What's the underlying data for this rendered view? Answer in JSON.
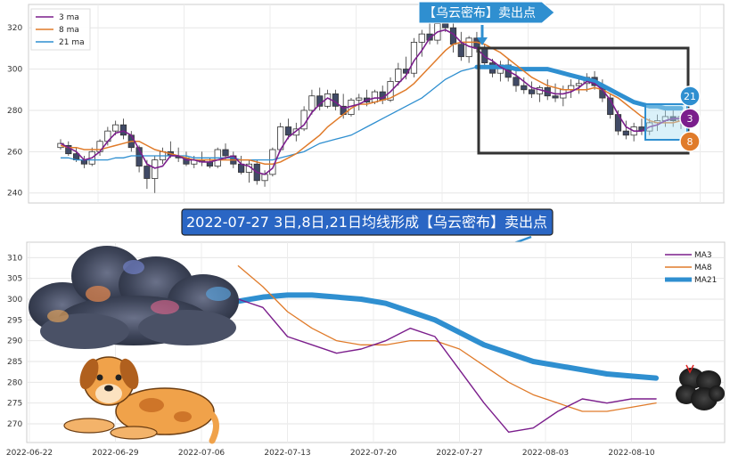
{
  "top_badge": "【乌云密布】卖出点",
  "caption": "2022-07-27 3日,8日,21日均线形成【乌云密布】卖出点",
  "colors": {
    "ma3": "#7b1e8c",
    "ma8": "#e07b2a",
    "ma21": "#2f8fd0",
    "up": "#ffffff",
    "down": "#404a66"
  },
  "chart_data": [
    {
      "type": "candlestick",
      "ylim": [
        236,
        330
      ],
      "yticks": [
        240,
        260,
        280,
        300,
        320
      ],
      "legend": {
        "position": "top-left",
        "items": [
          "3 ma",
          "8 ma",
          "21 ma"
        ]
      },
      "grid": true,
      "ohlc": [
        [
          262,
          266,
          261,
          264
        ],
        [
          263,
          265,
          258,
          259
        ],
        [
          259,
          262,
          255,
          256
        ],
        [
          256,
          258,
          252,
          254
        ],
        [
          254,
          262,
          253,
          260
        ],
        [
          260,
          266,
          258,
          265
        ],
        [
          265,
          272,
          263,
          270
        ],
        [
          270,
          275,
          268,
          273
        ],
        [
          273,
          276,
          266,
          268
        ],
        [
          268,
          270,
          260,
          262
        ],
        [
          262,
          263,
          250,
          253
        ],
        [
          253,
          256,
          242,
          247
        ],
        [
          247,
          258,
          240,
          256
        ],
        [
          256,
          262,
          254,
          260
        ],
        [
          260,
          265,
          257,
          258
        ],
        [
          258,
          262,
          255,
          257
        ],
        [
          257,
          260,
          253,
          254
        ],
        [
          254,
          258,
          252,
          256
        ],
        [
          256,
          260,
          253,
          255
        ],
        [
          255,
          257,
          252,
          253
        ],
        [
          253,
          262,
          252,
          261
        ],
        [
          261,
          264,
          256,
          258
        ],
        [
          258,
          260,
          252,
          254
        ],
        [
          254,
          258,
          249,
          250
        ],
        [
          250,
          256,
          245,
          254
        ],
        [
          254,
          256,
          244,
          246
        ],
        [
          246,
          251,
          243,
          249
        ],
        [
          249,
          262,
          248,
          261
        ],
        [
          261,
          274,
          260,
          272
        ],
        [
          272,
          276,
          266,
          268
        ],
        [
          268,
          274,
          265,
          271
        ],
        [
          271,
          282,
          270,
          280
        ],
        [
          280,
          290,
          278,
          287
        ],
        [
          287,
          291,
          280,
          282
        ],
        [
          282,
          290,
          281,
          288
        ],
        [
          288,
          290,
          280,
          282
        ],
        [
          282,
          288,
          276,
          278
        ],
        [
          278,
          286,
          277,
          285
        ],
        [
          285,
          288,
          280,
          286
        ],
        [
          286,
          290,
          282,
          284
        ],
        [
          284,
          290,
          283,
          289
        ],
        [
          289,
          292,
          283,
          285
        ],
        [
          285,
          296,
          284,
          294
        ],
        [
          294,
          303,
          292,
          300
        ],
        [
          300,
          306,
          295,
          298
        ],
        [
          298,
          315,
          296,
          313
        ],
        [
          313,
          319,
          306,
          317
        ],
        [
          317,
          322,
          312,
          314
        ],
        [
          314,
          326,
          312,
          322
        ],
        [
          322,
          327,
          318,
          320
        ],
        [
          320,
          322,
          308,
          312
        ],
        [
          312,
          318,
          304,
          306
        ],
        [
          306,
          316,
          303,
          315
        ],
        [
          315,
          318,
          308,
          310
        ],
        [
          310,
          312,
          300,
          303
        ],
        [
          303,
          305,
          296,
          298
        ],
        [
          298,
          304,
          294,
          302
        ],
        [
          302,
          305,
          294,
          296
        ],
        [
          296,
          299,
          289,
          292
        ],
        [
          292,
          296,
          288,
          290
        ],
        [
          290,
          294,
          286,
          288
        ],
        [
          288,
          292,
          284,
          291
        ],
        [
          291,
          295,
          285,
          287
        ],
        [
          287,
          293,
          284,
          286
        ],
        [
          286,
          292,
          282,
          290
        ],
        [
          290,
          295,
          286,
          292
        ],
        [
          292,
          297,
          288,
          293
        ],
        [
          293,
          298,
          289,
          296
        ],
        [
          296,
          299,
          290,
          292
        ],
        [
          292,
          295,
          284,
          286
        ],
        [
          286,
          288,
          276,
          278
        ],
        [
          278,
          280,
          268,
          270
        ],
        [
          270,
          275,
          266,
          268
        ],
        [
          268,
          274,
          265,
          272
        ],
        [
          272,
          276,
          268,
          270
        ],
        [
          270,
          276,
          268,
          274
        ],
        [
          274,
          278,
          270,
          275
        ],
        [
          275,
          280,
          272,
          277
        ],
        [
          277,
          280,
          272,
          275
        ],
        [
          275,
          279,
          271,
          277
        ]
      ],
      "ma3": [
        264,
        262,
        260,
        256,
        257,
        260,
        265,
        269,
        270,
        268,
        261,
        254,
        252,
        253,
        258,
        258,
        256,
        256,
        255,
        255,
        256,
        257,
        258,
        254,
        253,
        250,
        249,
        252,
        261,
        267,
        270,
        273,
        279,
        283,
        286,
        284,
        281,
        282,
        283,
        285,
        286,
        286,
        289,
        293,
        297,
        304,
        309,
        315,
        318,
        319,
        317,
        313,
        311,
        310,
        306,
        304,
        301,
        299,
        297,
        294,
        291,
        290,
        289,
        288,
        288,
        289,
        291,
        294,
        293,
        290,
        285,
        278,
        272,
        270,
        270,
        272,
        273,
        275,
        276,
        276
      ],
      "ma8": [
        263,
        262,
        262,
        261,
        261,
        261,
        262,
        263,
        264,
        265,
        265,
        263,
        261,
        260,
        259,
        258,
        257,
        256,
        256,
        256,
        256,
        256,
        256,
        256,
        256,
        255,
        254,
        254,
        255,
        257,
        259,
        262,
        265,
        268,
        272,
        275,
        278,
        281,
        283,
        283,
        284,
        285,
        286,
        288,
        290,
        293,
        297,
        301,
        305,
        309,
        312,
        313,
        313,
        313,
        312,
        310,
        308,
        305,
        302,
        299,
        296,
        294,
        292,
        291,
        290,
        290,
        290,
        290,
        291,
        290,
        288,
        286,
        283,
        280,
        277,
        275,
        274,
        274,
        274,
        275
      ],
      "ma21": [
        257,
        257,
        256,
        256,
        256,
        256,
        256,
        257,
        257,
        258,
        258,
        258,
        258,
        258,
        258,
        258,
        258,
        257,
        257,
        257,
        257,
        257,
        257,
        256,
        256,
        256,
        256,
        256,
        257,
        258,
        259,
        260,
        262,
        264,
        265,
        266,
        267,
        268,
        270,
        272,
        274,
        276,
        278,
        280,
        282,
        284,
        286,
        289,
        292,
        295,
        297,
        299,
        300,
        301,
        301,
        301,
        301,
        301,
        300,
        300,
        300,
        300,
        300,
        299,
        298,
        297,
        296,
        295,
        294,
        292,
        290,
        288,
        286,
        284,
        283,
        282,
        282,
        281,
        281,
        281
      ]
    },
    {
      "type": "line",
      "ylim": [
        267,
        312
      ],
      "yticks": [
        270,
        275,
        280,
        285,
        290,
        295,
        300,
        305,
        310
      ],
      "xticks": [
        "2022-06-22",
        "2022-06-29",
        "2022-07-06",
        "2022-07-13",
        "2022-07-20",
        "2022-07-27",
        "2022-08-03",
        "2022-08-10"
      ],
      "legend": {
        "position": "top-right",
        "items": [
          "MA3",
          "MA8",
          "MA21"
        ]
      },
      "grid": true,
      "x": [
        "2022-07-09",
        "2022-07-11",
        "2022-07-13",
        "2022-07-15",
        "2022-07-17",
        "2022-07-19",
        "2022-07-21",
        "2022-07-23",
        "2022-07-25",
        "2022-07-27",
        "2022-07-29",
        "2022-07-31",
        "2022-08-02",
        "2022-08-04",
        "2022-08-06",
        "2022-08-08",
        "2022-08-10",
        "2022-08-12"
      ],
      "series": [
        {
          "name": "MA3",
          "values": [
            300,
            298,
            291,
            289,
            287,
            288,
            290,
            293,
            291,
            283,
            275,
            268,
            269,
            273,
            276,
            275,
            276,
            276
          ]
        },
        {
          "name": "MA8",
          "values": [
            308,
            303,
            297,
            293,
            290,
            289,
            289,
            290,
            290,
            288,
            284,
            280,
            277,
            275,
            273,
            273,
            274,
            275
          ]
        },
        {
          "name": "MA21",
          "values": [
            299.5,
            300.5,
            301,
            301,
            300.5,
            300,
            299,
            297,
            295,
            292,
            289,
            287,
            285,
            284,
            283,
            282,
            281.5,
            281
          ]
        }
      ]
    }
  ],
  "markers": [
    "21",
    "3",
    "8"
  ]
}
